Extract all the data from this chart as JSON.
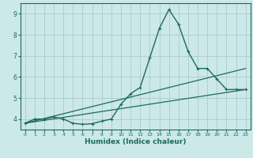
{
  "xlabel": "Humidex (Indice chaleur)",
  "bg_color": "#cce8e8",
  "grid_color": "#aacccc",
  "line_color": "#1a6b5e",
  "xlim": [
    -0.5,
    23.5
  ],
  "ylim": [
    3.5,
    9.5
  ],
  "xticks": [
    0,
    1,
    2,
    3,
    4,
    5,
    6,
    7,
    8,
    9,
    10,
    11,
    12,
    13,
    14,
    15,
    16,
    17,
    18,
    19,
    20,
    21,
    22,
    23
  ],
  "yticks": [
    4,
    5,
    6,
    7,
    8,
    9
  ],
  "line1_x": [
    0,
    1,
    2,
    3,
    4,
    5,
    6,
    7,
    8,
    9,
    10,
    11,
    12,
    13,
    14,
    15,
    16,
    17,
    18,
    19,
    20,
    21,
    22,
    23
  ],
  "line1_y": [
    3.8,
    4.0,
    4.0,
    4.1,
    4.0,
    3.8,
    3.75,
    3.78,
    3.9,
    4.0,
    4.7,
    5.2,
    5.5,
    6.9,
    8.3,
    9.2,
    8.5,
    7.2,
    6.4,
    6.4,
    5.9,
    5.4,
    5.4,
    5.4
  ],
  "line2_x": [
    0,
    23
  ],
  "line2_y": [
    3.8,
    6.4
  ],
  "line3_x": [
    0,
    23
  ],
  "line3_y": [
    3.8,
    5.4
  ]
}
